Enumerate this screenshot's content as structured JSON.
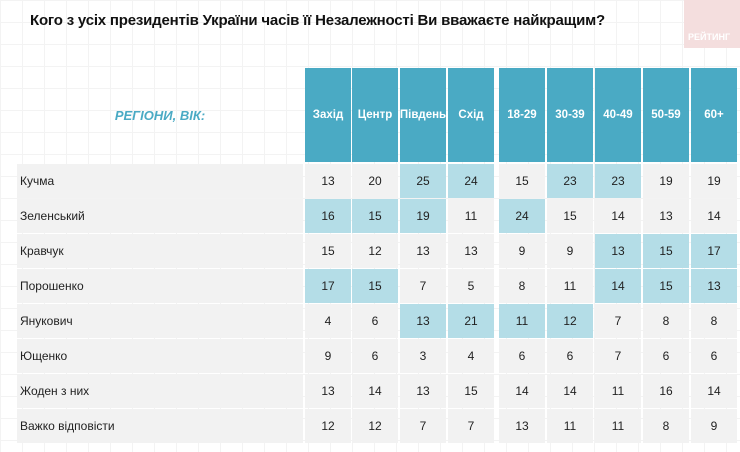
{
  "title": "Кого з усіх президентів України часів її Незалежності Ви вважаєте найкращим?",
  "logo": "РЕЙТИНГ",
  "chart_data": {
    "type": "table",
    "title": "Кого з усіх президентів України часів її Незалежності Ви вважаєте найкращим?",
    "row_header": "РЕГІОНИ, ВІК:",
    "columns": [
      "Захід",
      "Центр",
      "Південь",
      "Схід",
      "18-29",
      "30-39",
      "40-49",
      "50-59",
      "60+"
    ],
    "colors": {
      "header": "#4aaac4",
      "highlight": "#b4dde7",
      "cell": "#f2f2f2"
    },
    "rows": [
      {
        "label": "Кучма",
        "values": [
          13,
          20,
          25,
          24,
          15,
          23,
          23,
          19,
          19
        ],
        "highlight": [
          0,
          0,
          1,
          1,
          0,
          1,
          1,
          0,
          0
        ]
      },
      {
        "label": "Зеленський",
        "values": [
          16,
          15,
          19,
          11,
          24,
          15,
          14,
          13,
          14
        ],
        "highlight": [
          1,
          1,
          1,
          0,
          1,
          0,
          0,
          0,
          0
        ]
      },
      {
        "label": "Кравчук",
        "values": [
          15,
          12,
          13,
          13,
          9,
          9,
          13,
          15,
          17
        ],
        "highlight": [
          0,
          0,
          0,
          0,
          0,
          0,
          1,
          1,
          1
        ]
      },
      {
        "label": "Порошенко",
        "values": [
          17,
          15,
          7,
          5,
          8,
          11,
          14,
          15,
          13
        ],
        "highlight": [
          1,
          1,
          0,
          0,
          0,
          0,
          1,
          1,
          1
        ]
      },
      {
        "label": "Янукович",
        "values": [
          4,
          6,
          13,
          21,
          11,
          12,
          7,
          8,
          8
        ],
        "highlight": [
          0,
          0,
          1,
          1,
          1,
          1,
          0,
          0,
          0
        ]
      },
      {
        "label": "Ющенко",
        "values": [
          9,
          6,
          3,
          4,
          6,
          6,
          7,
          6,
          6
        ],
        "highlight": [
          0,
          0,
          0,
          0,
          0,
          0,
          0,
          0,
          0
        ]
      },
      {
        "label": "Жоден з них",
        "values": [
          13,
          14,
          13,
          15,
          14,
          14,
          11,
          16,
          14
        ],
        "highlight": [
          0,
          0,
          0,
          0,
          0,
          0,
          0,
          0,
          0
        ]
      },
      {
        "label": "Важко відповісти",
        "values": [
          12,
          12,
          7,
          7,
          13,
          11,
          11,
          8,
          9
        ],
        "highlight": [
          0,
          0,
          0,
          0,
          0,
          0,
          0,
          0,
          0
        ]
      }
    ]
  }
}
